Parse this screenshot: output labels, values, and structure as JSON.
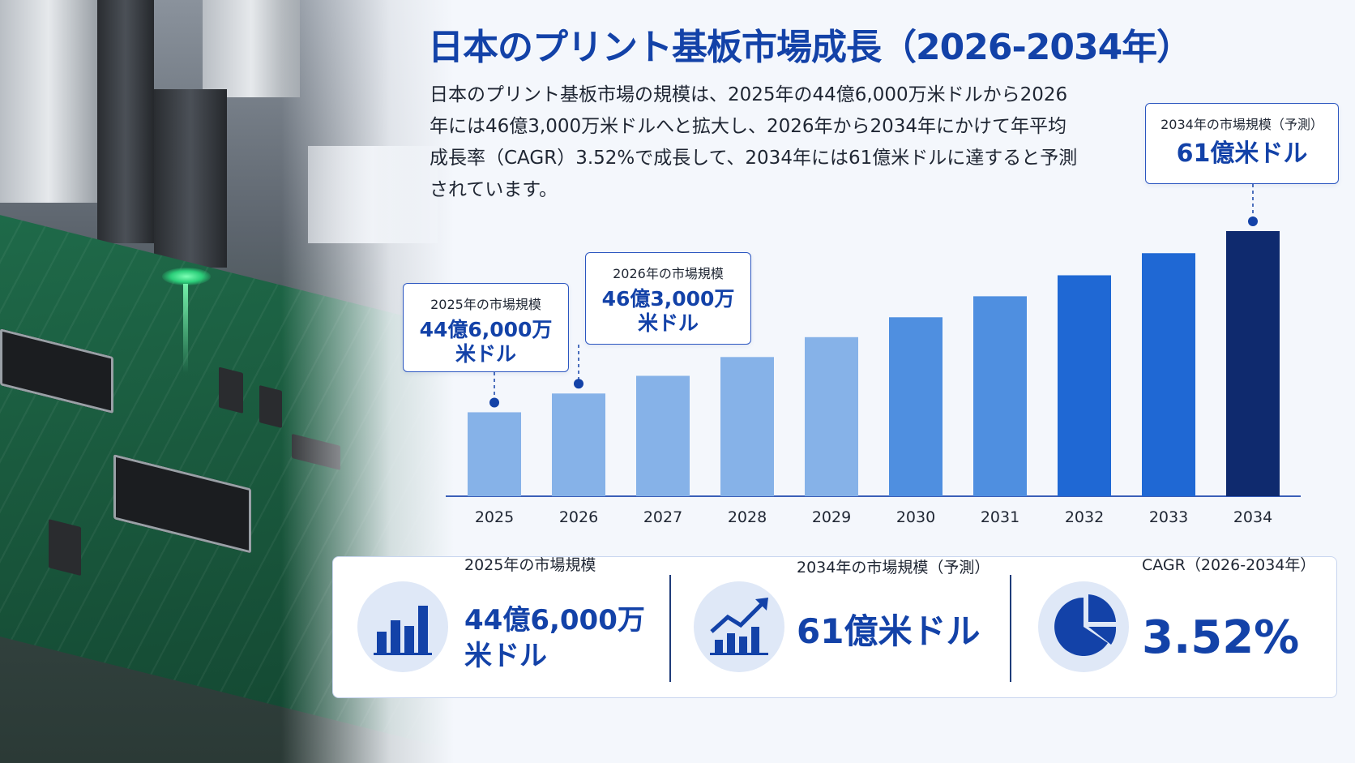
{
  "title": "日本のプリント基板市場成長（2026-2034年）",
  "description": "日本のプリント基板市場の規模は、2025年の44億6,000万米ドルから2026年には46億3,000万米ドルへと拡大し、2026年から2034年にかけて年平均成長率（CAGR）3.52%で成長して、2034年には61億米ドルに達すると予測されています。",
  "callouts": {
    "c2025": {
      "label": "2025年の市場規模",
      "value": "44億6,000万米ドル"
    },
    "c2026": {
      "label": "2026年の市場規模",
      "value": "46億3,000万米ドル"
    },
    "c2034": {
      "label": "2034年の市場規模（予測）",
      "value": "61億米ドル"
    }
  },
  "stats": {
    "s1": {
      "label": "2025年の市場規模",
      "value": "44億6,000万米ドル",
      "icon": "bar-chart-icon"
    },
    "s2": {
      "label": "2034年の市場規模（予測）",
      "value": "61億米ドル",
      "icon": "growth-chart-icon"
    },
    "s3": {
      "label": "CAGR（2026-2034年）",
      "value": "3.52%",
      "icon": "pie-chart-icon"
    }
  },
  "colors": {
    "accent": "#1342a8",
    "bar_light": "#86b2e8",
    "bar_mid": "#4f8fe0",
    "bar_strong": "#1f68d4",
    "bar_final": "#0f2a6e"
  },
  "chart_data": {
    "type": "bar",
    "title": "日本のプリント基板市場成長（2026-2034年）",
    "categories": [
      "2025",
      "2026",
      "2027",
      "2028",
      "2029",
      "2030",
      "2031",
      "2032",
      "2033",
      "2034"
    ],
    "values": [
      4.46,
      4.63,
      4.79,
      4.96,
      5.14,
      5.32,
      5.51,
      5.7,
      5.9,
      6.1
    ],
    "unit": "十億米ドル",
    "xlabel": "",
    "ylabel": "",
    "ylim": [
      3.7,
      6.1
    ],
    "grid": false,
    "legend": "none"
  }
}
